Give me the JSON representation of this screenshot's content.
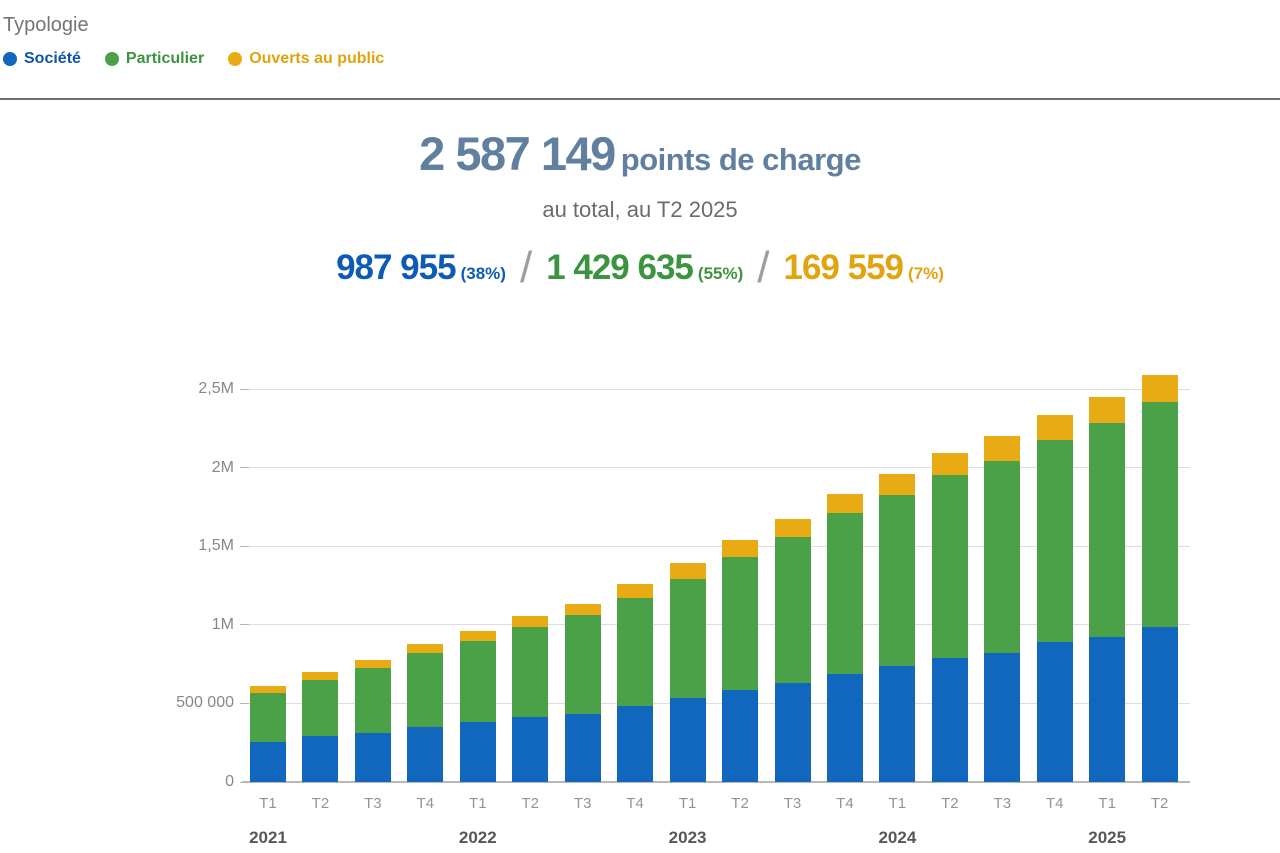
{
  "legend": {
    "title": "Typologie",
    "items": [
      {
        "label": "Société",
        "text_color": "#0f55a8",
        "dot_color": "#1166be"
      },
      {
        "label": "Particulier",
        "text_color": "#3c9340",
        "dot_color": "#4aa147"
      },
      {
        "label": "Ouverts au public",
        "text_color": "#dfa30d",
        "dot_color": "#e9ab13"
      }
    ]
  },
  "summary": {
    "total_value": "2 587 149",
    "total_label": "points de charge",
    "subtitle": "au total, au T2 2025",
    "separator": "/",
    "stats": [
      {
        "value": "987 955",
        "percent": "(38%)",
        "color": "#0e5bb5"
      },
      {
        "value": "1 429 635",
        "percent": "(55%)",
        "color": "#3c9440"
      },
      {
        "value": "169 559",
        "percent": "(7%)",
        "color": "#e2a40e"
      }
    ]
  },
  "chart_data": {
    "type": "bar",
    "stacked": true,
    "grid": true,
    "legend_position": "top-left",
    "ylim": [
      0,
      2700000
    ],
    "yticks": [
      {
        "value": 0,
        "label": "0"
      },
      {
        "value": 500000,
        "label": "500 000"
      },
      {
        "value": 1000000,
        "label": "1M"
      },
      {
        "value": 1500000,
        "label": "1,5M"
      },
      {
        "value": 2000000,
        "label": "2M"
      },
      {
        "value": 2500000,
        "label": "2,5M"
      }
    ],
    "x": [
      "T1",
      "T2",
      "T3",
      "T4",
      "T1",
      "T2",
      "T3",
      "T4",
      "T1",
      "T2",
      "T3",
      "T4",
      "T1",
      "T2",
      "T3",
      "T4",
      "T1",
      "T2"
    ],
    "year_groups": [
      {
        "year": "2021",
        "start_index": 0
      },
      {
        "year": "2022",
        "start_index": 4
      },
      {
        "year": "2023",
        "start_index": 8
      },
      {
        "year": "2024",
        "start_index": 12
      },
      {
        "year": "2025",
        "start_index": 16
      }
    ],
    "series": [
      {
        "name": "Société",
        "slug": "societe",
        "color": "#1166be",
        "values": [
          253000,
          292000,
          312000,
          350000,
          380000,
          413000,
          432000,
          486000,
          532000,
          586000,
          631000,
          689000,
          737000,
          788000,
          818000,
          889000,
          922000,
          987955
        ]
      },
      {
        "name": "Particulier",
        "slug": "particulier",
        "color": "#4aa147",
        "values": [
          312000,
          355000,
          412000,
          468000,
          514000,
          572000,
          629000,
          685000,
          760000,
          845000,
          926000,
          1020000,
          1089000,
          1168000,
          1224000,
          1285000,
          1362000,
          1429635
        ]
      },
      {
        "name": "Ouverts au public",
        "slug": "ouverts-au-public",
        "color": "#e9ab13",
        "values": [
          45000,
          50000,
          55000,
          60000,
          64000,
          68000,
          74000,
          88000,
          103000,
          108000,
          115000,
          126000,
          134000,
          139000,
          158000,
          161000,
          168000,
          169559
        ]
      }
    ]
  }
}
